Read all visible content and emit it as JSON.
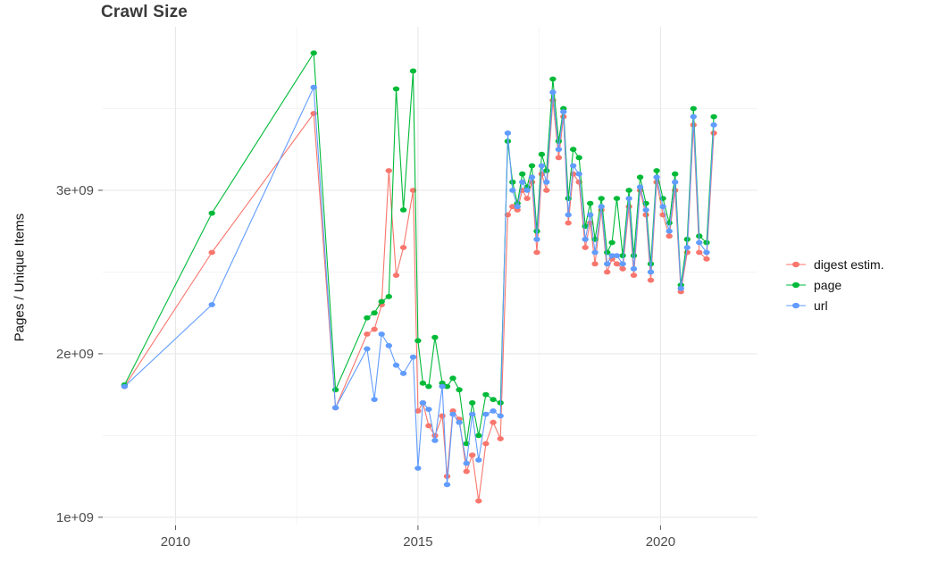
{
  "chart_data": {
    "type": "line",
    "title": "Crawl Size",
    "xlabel": "",
    "ylabel": "Pages / Unique Items",
    "grid": true,
    "legend_position": "right",
    "xlim": [
      2008.5,
      2022.0
    ],
    "ylim": [
      950000000.0,
      4000000000.0
    ],
    "x_ticks": [
      {
        "value": 2010,
        "label": "2010"
      },
      {
        "value": 2015,
        "label": "2015"
      },
      {
        "value": 2020,
        "label": "2020"
      }
    ],
    "y_ticks": [
      {
        "value": 1000000000.0,
        "label": "1e+09"
      },
      {
        "value": 2000000000.0,
        "label": "2e+09"
      },
      {
        "value": 3000000000.0,
        "label": "3e+09"
      }
    ],
    "x_minor": [
      2012.5,
      2017.5
    ],
    "y_minor": [
      1500000000.0,
      2500000000.0,
      3500000000.0
    ],
    "x": [
      2008.95,
      2010.75,
      2012.85,
      2013.3,
      2013.95,
      2014.1,
      2014.25,
      2014.4,
      2014.55,
      2014.7,
      2014.9,
      2015.0,
      2015.1,
      2015.22,
      2015.35,
      2015.5,
      2015.6,
      2015.72,
      2015.85,
      2016.0,
      2016.12,
      2016.25,
      2016.4,
      2016.55,
      2016.7,
      2016.85,
      2016.95,
      2017.05,
      2017.15,
      2017.25,
      2017.35,
      2017.45,
      2017.55,
      2017.65,
      2017.78,
      2017.9,
      2018.0,
      2018.1,
      2018.2,
      2018.32,
      2018.45,
      2018.55,
      2018.65,
      2018.78,
      2018.9,
      2019.0,
      2019.1,
      2019.22,
      2019.35,
      2019.45,
      2019.58,
      2019.7,
      2019.8,
      2019.92,
      2020.05,
      2020.18,
      2020.3,
      2020.42,
      2020.55,
      2020.68,
      2020.8,
      2020.95,
      2021.1
    ],
    "series": [
      {
        "name": "digest estim.",
        "color": "#F8766D",
        "values": [
          1800000000.0,
          2620000000.0,
          3470000000.0,
          1670000000.0,
          2120000000.0,
          2150000000.0,
          2300000000.0,
          3120000000.0,
          2480000000.0,
          2650000000.0,
          3000000000.0,
          1650000000.0,
          1700000000.0,
          1560000000.0,
          1500000000.0,
          1620000000.0,
          1250000000.0,
          1650000000.0,
          1600000000.0,
          1280000000.0,
          1380000000.0,
          1100000000.0,
          1450000000.0,
          1580000000.0,
          1480000000.0,
          2850000000.0,
          2900000000.0,
          2880000000.0,
          3000000000.0,
          2950000000.0,
          3050000000.0,
          2620000000.0,
          3100000000.0,
          3000000000.0,
          3550000000.0,
          3200000000.0,
          3450000000.0,
          2800000000.0,
          3100000000.0,
          3050000000.0,
          2650000000.0,
          2800000000.0,
          2550000000.0,
          2880000000.0,
          2500000000.0,
          2580000000.0,
          2550000000.0,
          2520000000.0,
          2900000000.0,
          2480000000.0,
          3000000000.0,
          2850000000.0,
          2450000000.0,
          3050000000.0,
          2850000000.0,
          2720000000.0,
          3000000000.0,
          2380000000.0,
          2620000000.0,
          3400000000.0,
          2620000000.0,
          2580000000.0,
          3350000000.0
        ]
      },
      {
        "name": "page",
        "color": "#00BA38",
        "values": [
          1810000000.0,
          2860000000.0,
          3840000000.0,
          1780000000.0,
          2220000000.0,
          2250000000.0,
          2320000000.0,
          2350000000.0,
          3620000000.0,
          2880000000.0,
          3730000000.0,
          2080000000.0,
          1820000000.0,
          1800000000.0,
          2100000000.0,
          1820000000.0,
          1800000000.0,
          1850000000.0,
          1780000000.0,
          1450000000.0,
          1700000000.0,
          1500000000.0,
          1750000000.0,
          1720000000.0,
          1700000000.0,
          3300000000.0,
          3050000000.0,
          2920000000.0,
          3100000000.0,
          3020000000.0,
          3150000000.0,
          2750000000.0,
          3220000000.0,
          3120000000.0,
          3680000000.0,
          3300000000.0,
          3500000000.0,
          2950000000.0,
          3250000000.0,
          3200000000.0,
          2780000000.0,
          2920000000.0,
          2700000000.0,
          2950000000.0,
          2620000000.0,
          2680000000.0,
          2950000000.0,
          2600000000.0,
          3000000000.0,
          2600000000.0,
          3080000000.0,
          2920000000.0,
          2550000000.0,
          3120000000.0,
          2950000000.0,
          2800000000.0,
          3100000000.0,
          2420000000.0,
          2700000000.0,
          3500000000.0,
          2720000000.0,
          2680000000.0,
          3450000000.0
        ]
      },
      {
        "name": "url",
        "color": "#619CFF",
        "values": [
          1800000000.0,
          2300000000.0,
          3630000000.0,
          1670000000.0,
          2030000000.0,
          1720000000.0,
          2120000000.0,
          2050000000.0,
          1930000000.0,
          1880000000.0,
          1980000000.0,
          1300000000.0,
          1700000000.0,
          1660000000.0,
          1470000000.0,
          1800000000.0,
          1200000000.0,
          1630000000.0,
          1580000000.0,
          1330000000.0,
          1630000000.0,
          1350000000.0,
          1630000000.0,
          1650000000.0,
          1620000000.0,
          3350000000.0,
          3000000000.0,
          2900000000.0,
          3050000000.0,
          3000000000.0,
          3080000000.0,
          2700000000.0,
          3150000000.0,
          3050000000.0,
          3600000000.0,
          3250000000.0,
          3480000000.0,
          2850000000.0,
          3150000000.0,
          3100000000.0,
          2700000000.0,
          2850000000.0,
          2620000000.0,
          2900000000.0,
          2550000000.0,
          2600000000.0,
          2600000000.0,
          2550000000.0,
          2950000000.0,
          2520000000.0,
          3020000000.0,
          2880000000.0,
          2500000000.0,
          3080000000.0,
          2900000000.0,
          2750000000.0,
          3050000000.0,
          2400000000.0,
          2650000000.0,
          3450000000.0,
          2680000000.0,
          2620000000.0,
          3400000000.0
        ]
      }
    ]
  }
}
